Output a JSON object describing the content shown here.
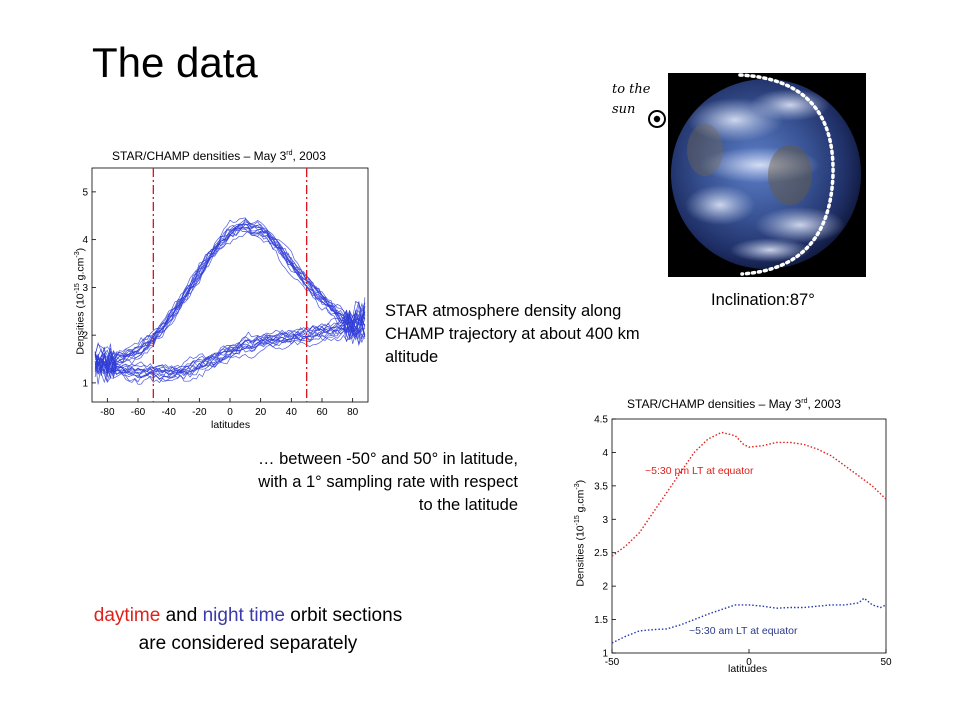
{
  "slide": {
    "title": "The data",
    "description_1": "STAR atmosphere density along CHAMP trajectory at about 400 km altitude",
    "description_2": "… between -50° and 50° in latitude, with a 1° sampling rate with respect to the latitude",
    "note_red": "daytime",
    "note_mid": " and ",
    "note_blue": "night time",
    "note_end": " orbit sections are considered separately",
    "inclination": "Inclination:87°",
    "sun_label_line1": "to the",
    "sun_label_line2": "sun"
  },
  "colors": {
    "day_series": "#e0201a",
    "night_series": "#2238b0",
    "trace_blue": "#2f3cd6",
    "marker_red": "#d8141c"
  },
  "chart_data": [
    {
      "type": "line",
      "title_main": "STAR/CHAMP  densities – May 3",
      "title_sup": "rd",
      "title_end": ", 2003",
      "ylabel_main": "Densities (10",
      "ylabel_sup1": "-15",
      "ylabel_mid": " g.cm",
      "ylabel_sup2": "-3",
      "ylabel_end": ")",
      "xlabel": "latitudes",
      "xlim": [
        -90,
        90
      ],
      "ylim": [
        0.6,
        5.5
      ],
      "xticks": [
        -80,
        -60,
        -40,
        -20,
        0,
        20,
        40,
        60,
        80
      ],
      "yticks": [
        1,
        2,
        3,
        4,
        5
      ],
      "markers_x": [
        -50,
        50
      ],
      "series": [
        {
          "x": [
            -88,
            -80,
            -70,
            -60,
            -50,
            -40,
            -30,
            -20,
            -10,
            0,
            10,
            20,
            30,
            40,
            50,
            60,
            70,
            80,
            88
          ],
          "values": [
            1.5,
            1.45,
            1.55,
            1.65,
            1.9,
            2.3,
            2.8,
            3.3,
            3.8,
            4.15,
            4.3,
            4.2,
            3.9,
            3.5,
            3.1,
            2.75,
            2.45,
            2.2,
            2.1
          ]
        },
        {
          "x": [
            -88,
            -80,
            -70,
            -60,
            -50,
            -40,
            -30,
            -20,
            -10,
            0,
            10,
            20,
            30,
            40,
            50,
            60,
            70,
            80,
            88
          ],
          "values": [
            1.4,
            1.3,
            1.25,
            1.2,
            1.2,
            1.2,
            1.25,
            1.35,
            1.5,
            1.65,
            1.8,
            1.85,
            1.9,
            1.95,
            2.0,
            2.05,
            2.1,
            2.25,
            2.45
          ]
        }
      ]
    },
    {
      "type": "line",
      "title_main": "STAR/CHAMP  densities – May 3",
      "title_sup": "rd",
      "title_end": ", 2003",
      "ylabel_main": "Densities (10",
      "ylabel_sup1": "-15",
      "ylabel_mid": " g.cm",
      "ylabel_sup2": "-3",
      "ylabel_end": ")",
      "xlabel": "latitudes",
      "xlim": [
        -50,
        50
      ],
      "ylim": [
        1,
        4.5
      ],
      "xticks": [
        -50,
        0,
        50
      ],
      "yticks": [
        1,
        1.5,
        2,
        2.5,
        3,
        3.5,
        4,
        4.5
      ],
      "ytick_labels": [
        "1",
        "1.5",
        "2",
        "2.5",
        "3",
        "3.5",
        "4",
        "4.5"
      ],
      "series": [
        {
          "name": "~5:30  pm LT at equator",
          "x": [
            -50,
            -45,
            -40,
            -35,
            -30,
            -25,
            -20,
            -15,
            -10,
            -5,
            -2,
            0,
            5,
            10,
            15,
            20,
            25,
            30,
            35,
            40,
            45,
            50
          ],
          "values": [
            2.45,
            2.6,
            2.8,
            3.1,
            3.4,
            3.7,
            4.0,
            4.2,
            4.3,
            4.25,
            4.12,
            4.08,
            4.1,
            4.15,
            4.15,
            4.12,
            4.05,
            3.95,
            3.8,
            3.65,
            3.5,
            3.3
          ]
        },
        {
          "name": "~5:30  am LT at equator",
          "x": [
            -50,
            -45,
            -40,
            -35,
            -30,
            -25,
            -20,
            -15,
            -10,
            -5,
            0,
            5,
            10,
            15,
            20,
            25,
            30,
            35,
            40,
            42,
            45,
            48,
            50
          ],
          "values": [
            1.15,
            1.25,
            1.33,
            1.35,
            1.36,
            1.42,
            1.5,
            1.58,
            1.65,
            1.72,
            1.72,
            1.7,
            1.67,
            1.68,
            1.68,
            1.7,
            1.72,
            1.72,
            1.75,
            1.82,
            1.72,
            1.68,
            1.72
          ]
        }
      ]
    }
  ]
}
